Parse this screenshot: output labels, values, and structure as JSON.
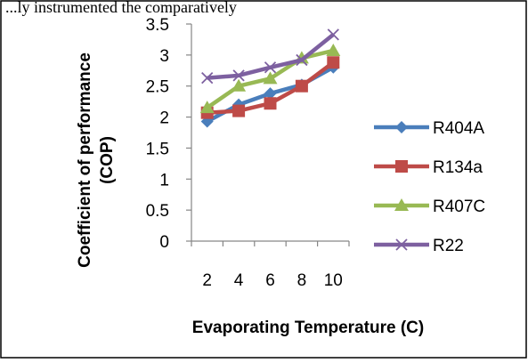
{
  "caption_fragment": "...ly instrumented the comparatively",
  "chart_data": {
    "type": "line",
    "title": "",
    "xlabel": "Evaporating Temperature (C)",
    "ylabel": "Coefficient of performance (COP)",
    "ylabel_lines": [
      "Coefficient of performance",
      "(COP)"
    ],
    "categories": [
      "2",
      "4",
      "6",
      "8",
      "10"
    ],
    "ylim": [
      0,
      3.5
    ],
    "yticks": [
      "0",
      "0.5",
      "1",
      "1.5",
      "2",
      "2.5",
      "3",
      "3.5"
    ],
    "grid": false,
    "legend": "right",
    "series": [
      {
        "name": "R404A",
        "color": "#4a7ebb",
        "marker": "diamond",
        "values": [
          1.93,
          2.2,
          2.38,
          2.52,
          2.8
        ]
      },
      {
        "name": "R134a",
        "color": "#be4b48",
        "marker": "square",
        "values": [
          2.07,
          2.1,
          2.22,
          2.5,
          2.88
        ]
      },
      {
        "name": "R407C",
        "color": "#98b954",
        "marker": "triangle",
        "values": [
          2.15,
          2.5,
          2.62,
          2.95,
          3.07
        ]
      },
      {
        "name": "R22",
        "color": "#7d60a0",
        "marker": "x",
        "values": [
          2.63,
          2.67,
          2.8,
          2.92,
          3.33
        ]
      }
    ]
  }
}
